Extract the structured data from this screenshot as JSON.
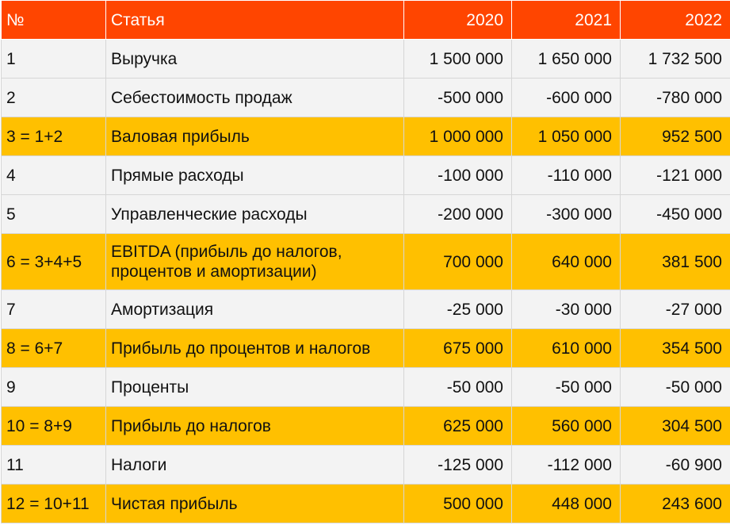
{
  "table": {
    "headers": [
      "№",
      "Статья",
      "2020",
      "2021",
      "2022"
    ],
    "rows": [
      {
        "num": "1",
        "item": "Выручка",
        "v2020": "1 500 000",
        "v2021": "1 650 000",
        "v2022": "1 732 500",
        "highlight": false
      },
      {
        "num": "2",
        "item": "Себестоимость продаж",
        "v2020": "-500 000",
        "v2021": "-600 000",
        "v2022": "-780 000",
        "highlight": false
      },
      {
        "num": "3 = 1+2",
        "item": "Валовая прибыль",
        "v2020": "1 000 000",
        "v2021": "1 050 000",
        "v2022": "952 500",
        "highlight": true
      },
      {
        "num": "4",
        "item": "Прямые расходы",
        "v2020": "-100 000",
        "v2021": "-110 000",
        "v2022": "-121 000",
        "highlight": false
      },
      {
        "num": "5",
        "item": "Управленческие расходы",
        "v2020": "-200 000",
        "v2021": "-300 000",
        "v2022": "-450 000",
        "highlight": false
      },
      {
        "num": "6 = 3+4+5",
        "item": "EBITDA (прибыль до налогов, процентов и амортизации)",
        "v2020": "700 000",
        "v2021": "640 000",
        "v2022": "381 500",
        "highlight": true
      },
      {
        "num": "7",
        "item": "Амортизация",
        "v2020": "-25 000",
        "v2021": "-30 000",
        "v2022": "-27 000",
        "highlight": false
      },
      {
        "num": "8 = 6+7",
        "item": "Прибыль до процентов и налогов",
        "v2020": "675 000",
        "v2021": "610 000",
        "v2022": "354 500",
        "highlight": true
      },
      {
        "num": "9",
        "item": "Проценты",
        "v2020": "-50 000",
        "v2021": "-50 000",
        "v2022": "-50 000",
        "highlight": false
      },
      {
        "num": "10 = 8+9",
        "item": "Прибыль до налогов",
        "v2020": "625 000",
        "v2021": "560 000",
        "v2022": "304 500",
        "highlight": true
      },
      {
        "num": "11",
        "item": "Налоги",
        "v2020": "-125 000",
        "v2021": "-112 000",
        "v2022": "-60 900",
        "highlight": false
      },
      {
        "num": "12 = 10+11",
        "item": "Чистая прибыль",
        "v2020": "500 000",
        "v2021": "448 000",
        "v2022": "243 600",
        "highlight": true
      }
    ]
  }
}
